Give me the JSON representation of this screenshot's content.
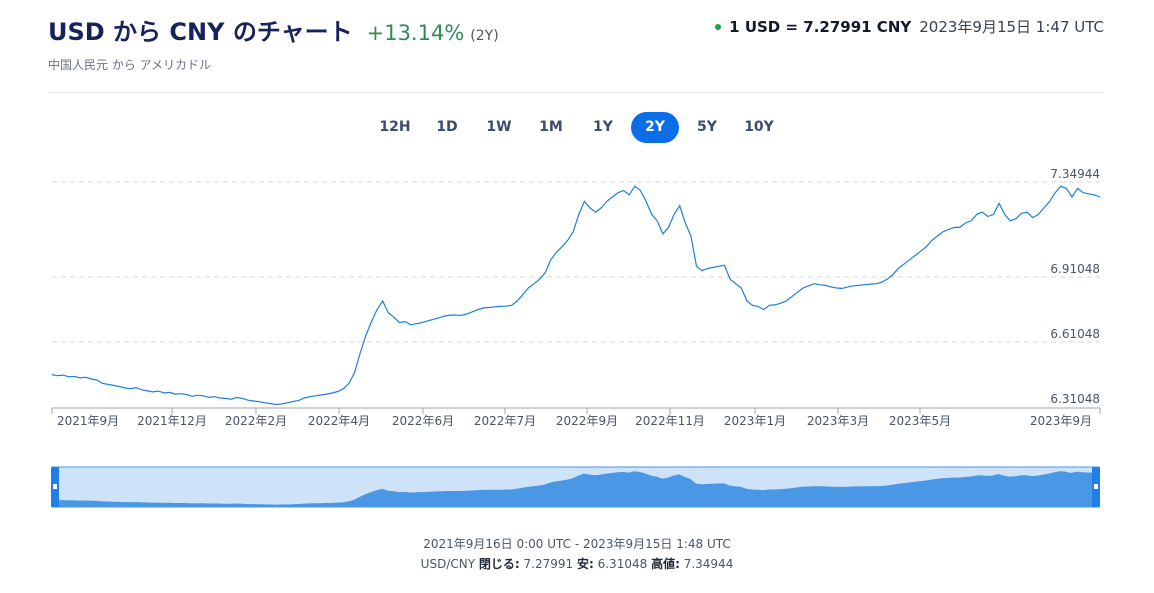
{
  "header": {
    "title": "USD から CNY のチャート",
    "change": "+13.14%",
    "period": "(2Y)",
    "subtitle": "中国人民元 から アメリカドル",
    "rate": "1 USD = 7.27991 CNY",
    "rate_time": "2023年9月15日 1:47 UTC",
    "colors": {
      "accent": "#0a6fe6",
      "positive": "#2e8b57",
      "live_dot": "#16a34a"
    }
  },
  "tabs": [
    {
      "label": "12H",
      "active": false
    },
    {
      "label": "1D",
      "active": false
    },
    {
      "label": "1W",
      "active": false
    },
    {
      "label": "1M",
      "active": false
    },
    {
      "label": "1Y",
      "active": false
    },
    {
      "label": "2Y",
      "active": true
    },
    {
      "label": "5Y",
      "active": false
    },
    {
      "label": "10Y",
      "active": false
    }
  ],
  "chart_data": {
    "type": "line",
    "title": "",
    "xlabel": "",
    "ylabel": "",
    "ylim": [
      6.31048,
      7.34944
    ],
    "y_ticks": [
      "7.34944",
      "6.91048",
      "6.61048",
      "6.31048"
    ],
    "x_ticks": [
      "2021年9月",
      "2021年12月",
      "2022年2月",
      "2022年4月",
      "2022年6月",
      "2022年7月",
      "2022年9月",
      "2022年11月",
      "2023年1月",
      "2023年3月",
      "2023年5月",
      "2023年9月"
    ],
    "grid": "horizontal dashed",
    "legend": "none",
    "series": [
      {
        "color": "#1e7fd8",
        "values": [
          6.46,
          6.455,
          6.458,
          6.45,
          6.452,
          6.445,
          6.448,
          6.44,
          6.435,
          6.42,
          6.415,
          6.41,
          6.405,
          6.398,
          6.395,
          6.4,
          6.39,
          6.385,
          6.38,
          6.384,
          6.375,
          6.378,
          6.37,
          6.372,
          6.368,
          6.36,
          6.365,
          6.362,
          6.355,
          6.358,
          6.352,
          6.35,
          6.346,
          6.355,
          6.35,
          6.342,
          6.338,
          6.335,
          6.33,
          6.326,
          6.322,
          6.325,
          6.33,
          6.336,
          6.34,
          6.352,
          6.358,
          6.362,
          6.366,
          6.37,
          6.375,
          6.382,
          6.395,
          6.42,
          6.47,
          6.56,
          6.64,
          6.705,
          6.76,
          6.8,
          6.745,
          6.725,
          6.7,
          6.705,
          6.69,
          6.695,
          6.7,
          6.708,
          6.715,
          6.722,
          6.73,
          6.735,
          6.735,
          6.734,
          6.74,
          6.75,
          6.76,
          6.768,
          6.77,
          6.773,
          6.775,
          6.776,
          6.78,
          6.8,
          6.83,
          6.86,
          6.88,
          6.9,
          6.93,
          6.99,
          7.025,
          7.05,
          7.08,
          7.12,
          7.2,
          7.26,
          7.23,
          7.21,
          7.23,
          7.26,
          7.28,
          7.3,
          7.31,
          7.29,
          7.33,
          7.31,
          7.26,
          7.2,
          7.17,
          7.11,
          7.14,
          7.2,
          7.24,
          7.16,
          7.1,
          6.96,
          6.94,
          6.95,
          6.955,
          6.96,
          6.965,
          6.9,
          6.88,
          6.86,
          6.8,
          6.78,
          6.775,
          6.76,
          6.78,
          6.782,
          6.79,
          6.8,
          6.82,
          6.84,
          6.86,
          6.87,
          6.88,
          6.875,
          6.872,
          6.865,
          6.86,
          6.858,
          6.865,
          6.87,
          6.872,
          6.875,
          6.878,
          6.88,
          6.886,
          6.9,
          6.92,
          6.95,
          6.97,
          6.99,
          7.01,
          7.03,
          7.05,
          7.08,
          7.1,
          7.12,
          7.13,
          7.14,
          7.14,
          7.16,
          7.17,
          7.2,
          7.21,
          7.19,
          7.2,
          7.25,
          7.2,
          7.17,
          7.18,
          7.205,
          7.21,
          7.185,
          7.2,
          7.23,
          7.26,
          7.3,
          7.33,
          7.32,
          7.28,
          7.32,
          7.3,
          7.295,
          7.29,
          7.28
        ]
      }
    ],
    "navigator": {
      "range": "2021年9月16日 0:00 UTC - 2023年9月15日 1:48 UTC"
    }
  },
  "footer": {
    "range": "2021年9月16日 0:00 UTC - 2023年9月15日 1:48 UTC",
    "pair": "USD/CNY",
    "close_label": "閉じる:",
    "close_value": "7.27991",
    "low_label": "安:",
    "low_value": "6.31048",
    "high_label": "高値:",
    "high_value": "7.34944"
  }
}
